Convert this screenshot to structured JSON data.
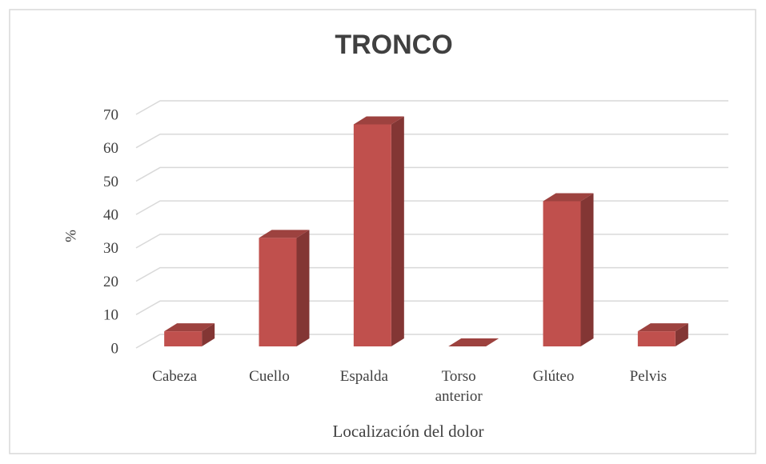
{
  "chart_data": {
    "type": "bar3d",
    "title": "TRONCO",
    "categories": [
      "Cabeza",
      "Cuello",
      "Espalda",
      "Torso anterior",
      "Glúteo",
      "Pelvis"
    ],
    "values": [
      5,
      33,
      67,
      0,
      44,
      5
    ],
    "color": "#c0504d",
    "ylim": [
      0,
      70
    ],
    "yticks": [
      0,
      10,
      20,
      30,
      40,
      50,
      60,
      70
    ],
    "grid": true,
    "ylabel": "%",
    "xlabel": "Localización del dolor"
  }
}
